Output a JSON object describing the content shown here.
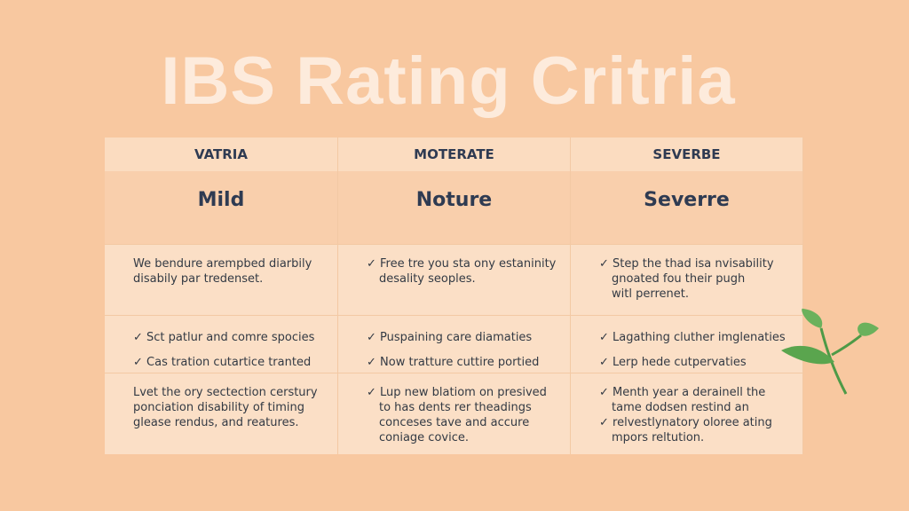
{
  "title": "IBS Rating Critria",
  "table": {
    "headers": [
      "VATRIA",
      "MOTERATE",
      "SEVERBE"
    ],
    "levels": [
      "Mild",
      "Noture",
      "Severre"
    ],
    "rows": [
      [
        [
          "We bendure arempbed diarbily",
          "disabily par tredenset."
        ],
        [
          "✓ Free tre you sta ony estaninity",
          "desality seoples."
        ],
        [
          "✓ Step the thad isa nvisability",
          "gnoated fou their pugh",
          "witl perrenet."
        ]
      ],
      [
        [
          "✓ Sct patlur and comre spocies",
          "✓ Cas tration cutartice tranted"
        ],
        [
          "✓ Puspaining care diamaties",
          "✓ Now tratture cuttire portied"
        ],
        [
          "✓ Lagathing cluther imglenaties",
          "✓ Lerp hede cutpervaties"
        ]
      ],
      [
        [
          "Lvet the ory sectection cerstury",
          "ponciation disability of timing",
          "glease rendus, and reatures."
        ],
        [
          "✓ Lup new blatiom on presived",
          "to has dents rer theadings",
          "conceses tave and accure",
          "coniage covice."
        ],
        [
          "✓ Menth year a derainell the",
          "tame dodsen restind an",
          "✓ relvestlynatory oloree ating",
          "mpors reltution."
        ]
      ]
    ]
  }
}
